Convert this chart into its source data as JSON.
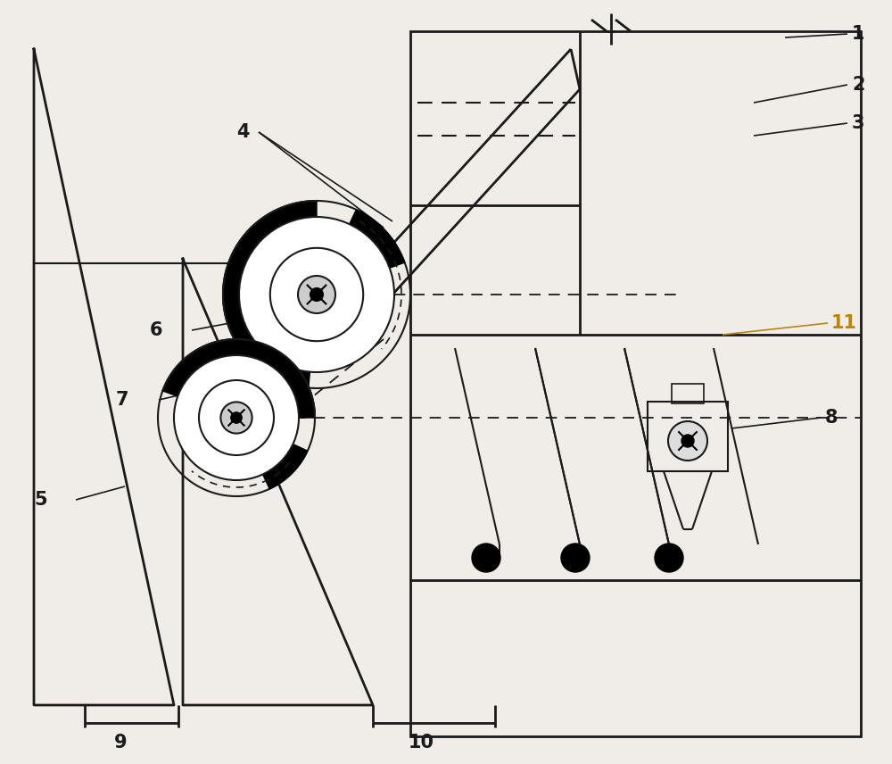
{
  "bg_color": "#f0ede8",
  "line_color": "#1a1a1a",
  "label_color_11": "#b8860b",
  "figsize": [
    10.0,
    8.56
  ],
  "dpi": 100
}
